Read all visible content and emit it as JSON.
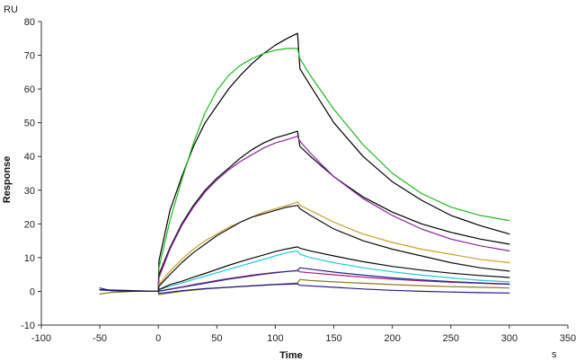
{
  "chart_data": {
    "type": "line",
    "title": "",
    "xlabel": "Time",
    "ylabel": "Response",
    "x_unit": "s",
    "y_unit": "RU",
    "xlim": [
      -100,
      350
    ],
    "ylim": [
      -10,
      80
    ],
    "x_ticks": [
      -100,
      -50,
      0,
      50,
      100,
      150,
      200,
      250,
      300,
      350
    ],
    "y_ticks": [
      -10,
      0,
      10,
      20,
      30,
      40,
      50,
      60,
      70,
      80
    ],
    "grid": false,
    "legend": "none",
    "series": [
      {
        "color": "#000000",
        "points": [
          [
            -50,
            0.5
          ],
          [
            0,
            0
          ],
          [
            0.5,
            9
          ],
          [
            10,
            24
          ],
          [
            20,
            34
          ],
          [
            30,
            43
          ],
          [
            40,
            50
          ],
          [
            50,
            55
          ],
          [
            60,
            60
          ],
          [
            70,
            64
          ],
          [
            80,
            67.5
          ],
          [
            90,
            70.5
          ],
          [
            100,
            73
          ],
          [
            110,
            75
          ],
          [
            119,
            76.5
          ],
          [
            121,
            66
          ],
          [
            130,
            61
          ],
          [
            150,
            50
          ],
          [
            175,
            40
          ],
          [
            200,
            32.5
          ],
          [
            225,
            27
          ],
          [
            250,
            22.5
          ],
          [
            275,
            19.5
          ],
          [
            300,
            17
          ]
        ]
      },
      {
        "color": "#22b822",
        "points": [
          [
            0,
            0
          ],
          [
            0.5,
            7
          ],
          [
            10,
            21
          ],
          [
            20,
            33
          ],
          [
            30,
            44
          ],
          [
            40,
            53
          ],
          [
            50,
            59.5
          ],
          [
            60,
            64
          ],
          [
            70,
            67
          ],
          [
            80,
            69
          ],
          [
            90,
            70.5
          ],
          [
            100,
            71.5
          ],
          [
            110,
            72
          ],
          [
            119,
            72
          ],
          [
            121,
            69
          ],
          [
            130,
            64
          ],
          [
            150,
            54
          ],
          [
            175,
            43.5
          ],
          [
            200,
            35
          ],
          [
            225,
            29
          ],
          [
            250,
            25
          ],
          [
            275,
            22.5
          ],
          [
            300,
            21
          ]
        ]
      },
      {
        "color": "#000000",
        "points": [
          [
            0,
            0
          ],
          [
            0.5,
            5
          ],
          [
            10,
            13
          ],
          [
            20,
            20
          ],
          [
            30,
            25.5
          ],
          [
            40,
            30
          ],
          [
            50,
            33.5
          ],
          [
            60,
            36.5
          ],
          [
            70,
            39.5
          ],
          [
            80,
            42
          ],
          [
            90,
            44
          ],
          [
            100,
            45.5
          ],
          [
            110,
            46.5
          ],
          [
            119,
            47.5
          ],
          [
            121,
            43
          ],
          [
            130,
            40
          ],
          [
            150,
            34
          ],
          [
            175,
            28
          ],
          [
            200,
            23.5
          ],
          [
            225,
            20
          ],
          [
            250,
            17.5
          ],
          [
            275,
            15.5
          ],
          [
            300,
            14
          ]
        ]
      },
      {
        "color": "#8a2a9a",
        "points": [
          [
            0,
            0
          ],
          [
            0.5,
            4
          ],
          [
            10,
            12.5
          ],
          [
            20,
            19.5
          ],
          [
            30,
            25
          ],
          [
            40,
            29.5
          ],
          [
            50,
            33
          ],
          [
            60,
            36
          ],
          [
            70,
            38.5
          ],
          [
            80,
            40.5
          ],
          [
            90,
            42.5
          ],
          [
            100,
            44
          ],
          [
            110,
            45
          ],
          [
            119,
            46
          ],
          [
            121,
            44.5
          ],
          [
            130,
            41
          ],
          [
            150,
            34
          ],
          [
            175,
            27.5
          ],
          [
            200,
            22.5
          ],
          [
            225,
            18.5
          ],
          [
            250,
            15.5
          ],
          [
            275,
            13.5
          ],
          [
            300,
            12
          ]
        ]
      },
      {
        "color": "#c8a030",
        "points": [
          [
            0,
            0
          ],
          [
            0.5,
            2
          ],
          [
            10,
            6
          ],
          [
            20,
            9.5
          ],
          [
            30,
            12.5
          ],
          [
            40,
            15
          ],
          [
            50,
            17
          ],
          [
            60,
            19
          ],
          [
            70,
            20.5
          ],
          [
            80,
            22
          ],
          [
            90,
            23.5
          ],
          [
            100,
            24.5
          ],
          [
            110,
            25.5
          ],
          [
            119,
            26.5
          ],
          [
            121,
            25.5
          ],
          [
            130,
            24
          ],
          [
            150,
            20.5
          ],
          [
            175,
            17
          ],
          [
            200,
            14.5
          ],
          [
            225,
            12.5
          ],
          [
            250,
            11
          ],
          [
            275,
            9.5
          ],
          [
            300,
            8.5
          ]
        ]
      },
      {
        "color": "#101010",
        "points": [
          [
            0,
            0
          ],
          [
            0.5,
            1.5
          ],
          [
            10,
            5
          ],
          [
            20,
            8.5
          ],
          [
            30,
            11.5
          ],
          [
            40,
            14
          ],
          [
            50,
            16.5
          ],
          [
            60,
            18.5
          ],
          [
            70,
            20.5
          ],
          [
            80,
            22
          ],
          [
            90,
            23
          ],
          [
            100,
            24
          ],
          [
            110,
            25
          ],
          [
            119,
            25.5
          ],
          [
            121,
            24.5
          ],
          [
            130,
            22.5
          ],
          [
            150,
            18.5
          ],
          [
            175,
            15
          ],
          [
            200,
            12.5
          ],
          [
            225,
            10.5
          ],
          [
            250,
            8.5
          ],
          [
            275,
            7
          ],
          [
            300,
            6
          ]
        ]
      },
      {
        "color": "#22c8d8",
        "points": [
          [
            0,
            0
          ],
          [
            0.5,
            0.5
          ],
          [
            10,
            1.5
          ],
          [
            20,
            2.5
          ],
          [
            30,
            3.5
          ],
          [
            40,
            4.5
          ],
          [
            50,
            5.5
          ],
          [
            60,
            6.5
          ],
          [
            70,
            7.5
          ],
          [
            80,
            8.5
          ],
          [
            90,
            9.5
          ],
          [
            100,
            10.5
          ],
          [
            110,
            11.5
          ],
          [
            119,
            12
          ],
          [
            121,
            11
          ],
          [
            130,
            10
          ],
          [
            150,
            8.5
          ],
          [
            175,
            7
          ],
          [
            200,
            5.8
          ],
          [
            225,
            4.8
          ],
          [
            250,
            4
          ],
          [
            275,
            3.3
          ],
          [
            300,
            2.8
          ]
        ]
      },
      {
        "color": "#0a0a0a",
        "points": [
          [
            0,
            0
          ],
          [
            0.5,
            0.5
          ],
          [
            10,
            2
          ],
          [
            20,
            3
          ],
          [
            30,
            4.2
          ],
          [
            40,
            5.3
          ],
          [
            50,
            6.5
          ],
          [
            60,
            7.7
          ],
          [
            70,
            8.8
          ],
          [
            80,
            9.8
          ],
          [
            90,
            10.8
          ],
          [
            100,
            11.8
          ],
          [
            110,
            12.6
          ],
          [
            119,
            13.2
          ],
          [
            121,
            12.8
          ],
          [
            130,
            12
          ],
          [
            150,
            10.5
          ],
          [
            175,
            8.8
          ],
          [
            200,
            7.4
          ],
          [
            225,
            6.3
          ],
          [
            250,
            5.4
          ],
          [
            275,
            4.7
          ],
          [
            300,
            4.1
          ]
        ]
      },
      {
        "color": "#b01870",
        "points": [
          [
            0,
            0
          ],
          [
            10,
            0.7
          ],
          [
            20,
            1.3
          ],
          [
            30,
            2
          ],
          [
            40,
            2.6
          ],
          [
            50,
            3.2
          ],
          [
            60,
            3.8
          ],
          [
            70,
            4.3
          ],
          [
            80,
            4.8
          ],
          [
            90,
            5.2
          ],
          [
            100,
            5.6
          ],
          [
            110,
            5.9
          ],
          [
            119,
            6.1
          ],
          [
            121,
            5.8
          ],
          [
            130,
            5.5
          ],
          [
            150,
            4.9
          ],
          [
            175,
            4.2
          ],
          [
            200,
            3.6
          ],
          [
            225,
            3.1
          ],
          [
            250,
            2.7
          ],
          [
            275,
            2.4
          ],
          [
            300,
            2.1
          ]
        ]
      },
      {
        "color": "#1f2a8f",
        "points": [
          [
            -50,
            1
          ],
          [
            -40,
            0.2
          ],
          [
            -20,
            0
          ],
          [
            0,
            0
          ],
          [
            10,
            0.6
          ],
          [
            20,
            1.2
          ],
          [
            30,
            1.8
          ],
          [
            40,
            2.4
          ],
          [
            50,
            3
          ],
          [
            60,
            3.6
          ],
          [
            70,
            4.1
          ],
          [
            80,
            4.6
          ],
          [
            90,
            5.1
          ],
          [
            100,
            5.5
          ],
          [
            110,
            5.9
          ],
          [
            119,
            6.2
          ],
          [
            121,
            7
          ],
          [
            130,
            6.6
          ],
          [
            150,
            5.7
          ],
          [
            175,
            4.8
          ],
          [
            200,
            4
          ],
          [
            225,
            3.4
          ],
          [
            250,
            2.9
          ],
          [
            275,
            2.5
          ],
          [
            300,
            2.2
          ]
        ]
      },
      {
        "color": "#8a7a20",
        "points": [
          [
            -50,
            -0.8
          ],
          [
            -40,
            -0.3
          ],
          [
            -20,
            0
          ],
          [
            0,
            0
          ],
          [
            0.5,
            -1
          ],
          [
            10,
            -0.5
          ],
          [
            20,
            0
          ],
          [
            40,
            0.7
          ],
          [
            60,
            1.2
          ],
          [
            80,
            1.7
          ],
          [
            100,
            2.1
          ],
          [
            119,
            2.5
          ],
          [
            121,
            3.5
          ],
          [
            130,
            3.2
          ],
          [
            150,
            2.8
          ],
          [
            175,
            2.4
          ],
          [
            200,
            2
          ],
          [
            225,
            1.7
          ],
          [
            250,
            1.4
          ],
          [
            275,
            1.2
          ],
          [
            300,
            1
          ]
        ]
      },
      {
        "color": "#2a1890",
        "points": [
          [
            -50,
            0.4
          ],
          [
            -30,
            0
          ],
          [
            0,
            0
          ],
          [
            0.5,
            -0.6
          ],
          [
            20,
            0.2
          ],
          [
            40,
            0.8
          ],
          [
            60,
            1.2
          ],
          [
            80,
            1.6
          ],
          [
            100,
            2
          ],
          [
            119,
            2.2
          ],
          [
            121,
            1.8
          ],
          [
            150,
            1.2
          ],
          [
            175,
            0.7
          ],
          [
            200,
            0.3
          ],
          [
            225,
            0
          ],
          [
            250,
            -0.2
          ],
          [
            275,
            -0.4
          ],
          [
            300,
            -0.5
          ]
        ]
      }
    ]
  }
}
